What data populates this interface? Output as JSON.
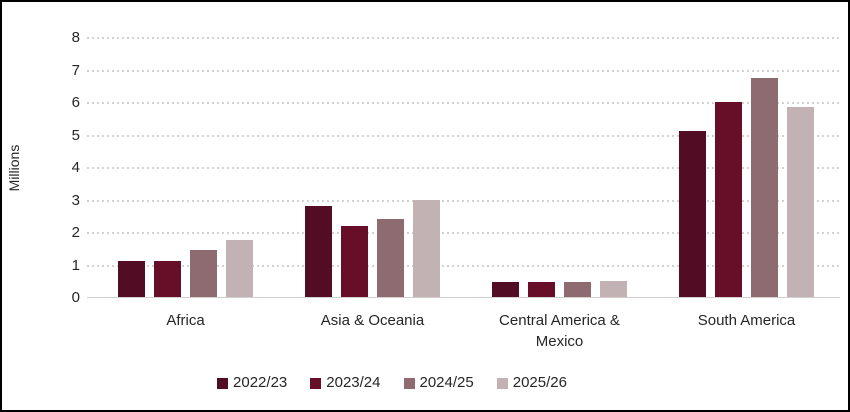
{
  "chart_data": {
    "type": "bar",
    "title": "",
    "ylabel": "Millions",
    "xlabel": "",
    "ylim": [
      0,
      8
    ],
    "y_tick_step": 1,
    "y_ticks": [
      0,
      1,
      2,
      3,
      4,
      5,
      6,
      7,
      8
    ],
    "grid": "horizontal-dotted",
    "legend_position": "bottom",
    "categories": [
      "Africa",
      "Asia & Oceania",
      "Central America & Mexico",
      "South America"
    ],
    "series": [
      {
        "name": "2022/23",
        "color": "#520C23",
        "values": [
          1.1,
          2.8,
          0.45,
          5.1
        ]
      },
      {
        "name": "2023/24",
        "color": "#670E29",
        "values": [
          1.1,
          2.2,
          0.45,
          6.0
        ]
      },
      {
        "name": "2024/25",
        "color": "#8E6B71",
        "values": [
          1.45,
          2.4,
          0.45,
          6.75
        ]
      },
      {
        "name": "2025/26",
        "color": "#C3B2B4",
        "values": [
          1.75,
          3.0,
          0.5,
          5.85
        ]
      }
    ],
    "colors": {
      "gridline": "#d4d1d1",
      "axis_line": "#d2cfcf",
      "text": "#262626",
      "background": "#ffffff",
      "border": "#000000"
    }
  }
}
